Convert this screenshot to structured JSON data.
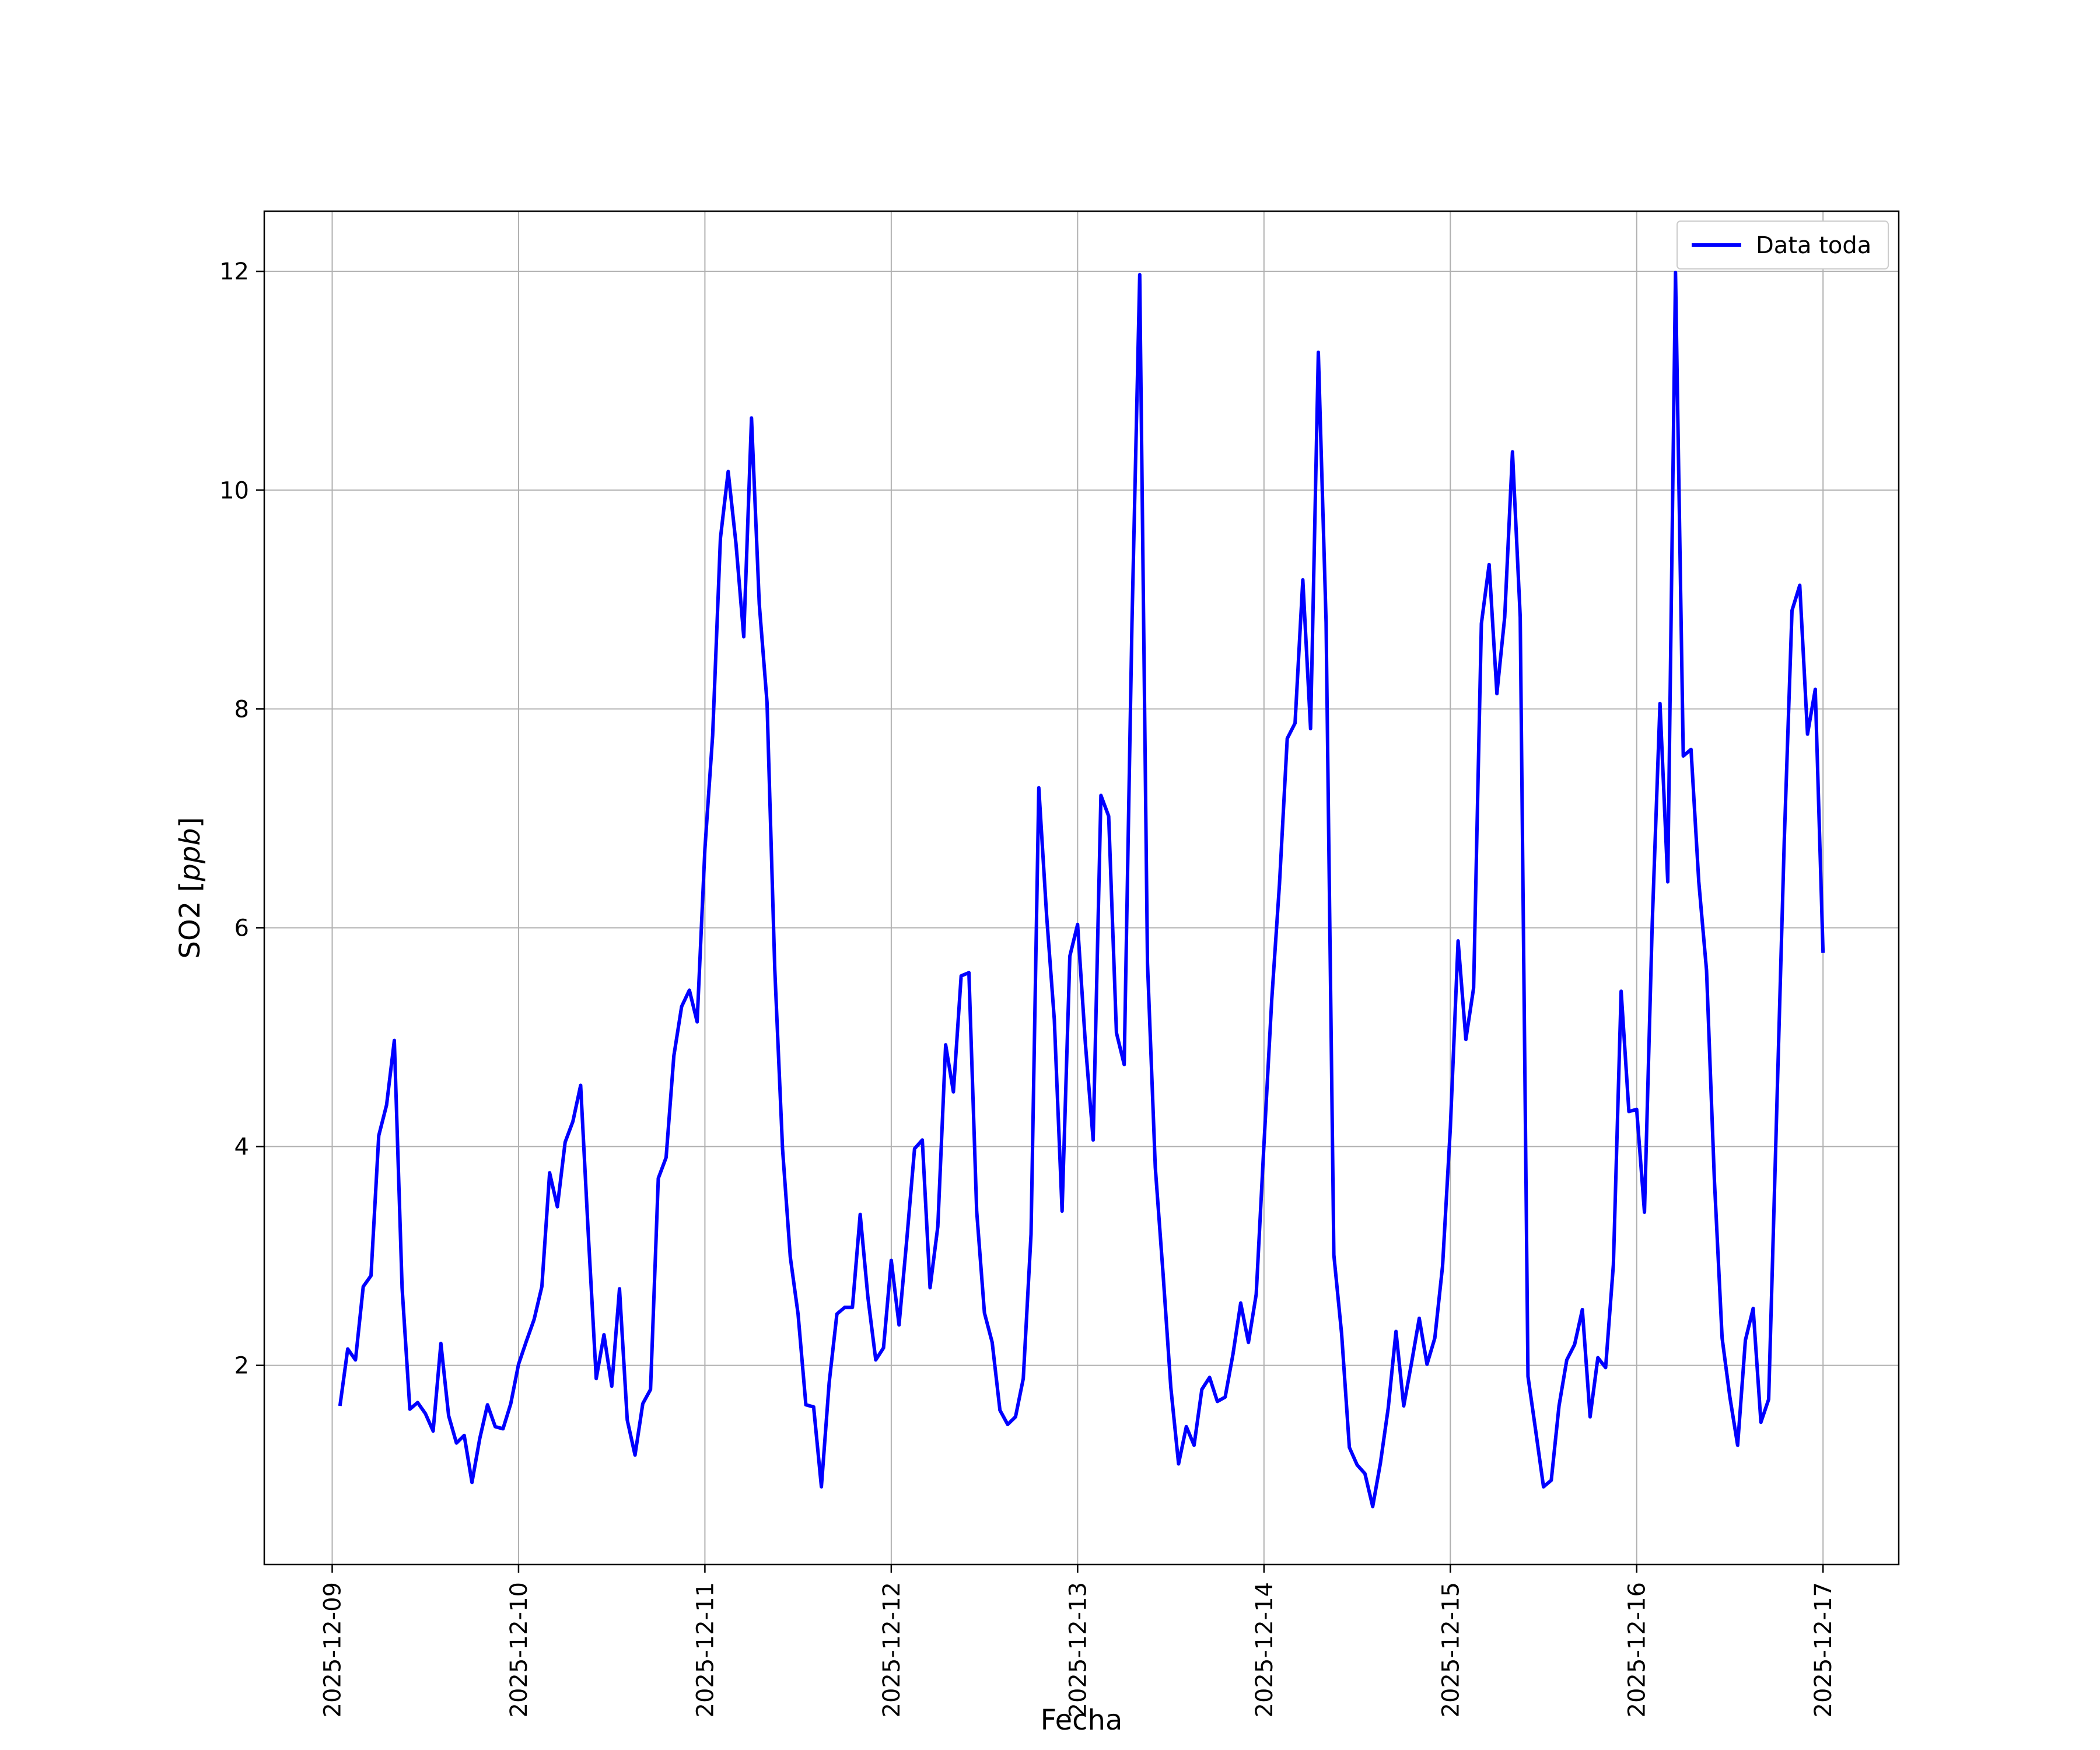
{
  "chart_data": {
    "type": "line",
    "title": "",
    "xlabel": "Fecha",
    "ylabel": "SO2 [ppb]",
    "ylabel_unit": "ppb",
    "ylabel_base": "SO2 ",
    "x_type": "datetime",
    "xlim": [
      "2025-12-08 15:15",
      "2025-12-17 09:45"
    ],
    "ylim": [
      0.18,
      12.55
    ],
    "x_ticks": [
      "2025-12-09",
      "2025-12-10",
      "2025-12-11",
      "2025-12-12",
      "2025-12-13",
      "2025-12-14",
      "2025-12-15",
      "2025-12-16",
      "2025-12-17"
    ],
    "y_ticks": [
      2,
      4,
      6,
      8,
      10,
      12
    ],
    "y_tick_labels": [
      "2",
      "4",
      "6",
      "8",
      "10",
      "12"
    ],
    "grid": true,
    "legend_placement": "top-right",
    "colors": {
      "line": "#0000ff",
      "grid": "#b0b0b0",
      "axes": "#000000"
    },
    "series": [
      {
        "name": "Data toda",
        "x": [
          "2025-12-09 01:00",
          "2025-12-09 02:00",
          "2025-12-09 03:00",
          "2025-12-09 04:00",
          "2025-12-09 05:00",
          "2025-12-09 06:00",
          "2025-12-09 07:00",
          "2025-12-09 08:00",
          "2025-12-09 09:00",
          "2025-12-09 10:00",
          "2025-12-09 11:00",
          "2025-12-09 12:00",
          "2025-12-09 13:00",
          "2025-12-09 14:00",
          "2025-12-09 15:00",
          "2025-12-09 16:00",
          "2025-12-09 17:00",
          "2025-12-09 18:00",
          "2025-12-09 19:00",
          "2025-12-09 20:00",
          "2025-12-09 21:00",
          "2025-12-09 22:00",
          "2025-12-09 23:00",
          "2025-12-10 00:00",
          "2025-12-10 01:00",
          "2025-12-10 02:00",
          "2025-12-10 03:00",
          "2025-12-10 04:00",
          "2025-12-10 05:00",
          "2025-12-10 06:00",
          "2025-12-10 07:00",
          "2025-12-10 08:00",
          "2025-12-10 09:00",
          "2025-12-10 10:00",
          "2025-12-10 11:00",
          "2025-12-10 12:00",
          "2025-12-10 13:00",
          "2025-12-10 14:00",
          "2025-12-10 15:00",
          "2025-12-10 16:00",
          "2025-12-10 17:00",
          "2025-12-10 18:00",
          "2025-12-10 19:00",
          "2025-12-10 20:00",
          "2025-12-10 21:00",
          "2025-12-10 22:00",
          "2025-12-10 23:00",
          "2025-12-11 00:00",
          "2025-12-11 01:00",
          "2025-12-11 02:00",
          "2025-12-11 03:00",
          "2025-12-11 04:00",
          "2025-12-11 05:00",
          "2025-12-11 06:00",
          "2025-12-11 07:00",
          "2025-12-11 08:00",
          "2025-12-11 09:00",
          "2025-12-11 10:00",
          "2025-12-11 11:00",
          "2025-12-11 12:00",
          "2025-12-11 13:00",
          "2025-12-11 14:00",
          "2025-12-11 15:00",
          "2025-12-11 16:00",
          "2025-12-11 17:00",
          "2025-12-11 18:00",
          "2025-12-11 19:00",
          "2025-12-11 20:00",
          "2025-12-11 21:00",
          "2025-12-11 22:00",
          "2025-12-11 23:00",
          "2025-12-12 00:00",
          "2025-12-12 01:00",
          "2025-12-12 02:00",
          "2025-12-12 03:00",
          "2025-12-12 04:00",
          "2025-12-12 05:00",
          "2025-12-12 06:00",
          "2025-12-12 07:00",
          "2025-12-12 08:00",
          "2025-12-12 09:00",
          "2025-12-12 10:00",
          "2025-12-12 11:00",
          "2025-12-12 12:00",
          "2025-12-12 13:00",
          "2025-12-12 14:00",
          "2025-12-12 15:00",
          "2025-12-12 16:00",
          "2025-12-12 17:00",
          "2025-12-12 18:00",
          "2025-12-12 19:00",
          "2025-12-12 20:00",
          "2025-12-12 21:00",
          "2025-12-12 22:00",
          "2025-12-12 23:00",
          "2025-12-13 00:00",
          "2025-12-13 01:00",
          "2025-12-13 02:00",
          "2025-12-13 03:00",
          "2025-12-13 04:00",
          "2025-12-13 05:00",
          "2025-12-13 06:00",
          "2025-12-13 07:00",
          "2025-12-13 08:00",
          "2025-12-13 09:00",
          "2025-12-13 10:00",
          "2025-12-13 11:00",
          "2025-12-13 12:00",
          "2025-12-13 13:00",
          "2025-12-13 14:00",
          "2025-12-13 15:00",
          "2025-12-13 16:00",
          "2025-12-13 17:00",
          "2025-12-13 18:00",
          "2025-12-13 19:00",
          "2025-12-13 20:00",
          "2025-12-13 21:00",
          "2025-12-13 22:00",
          "2025-12-13 23:00",
          "2025-12-14 00:00",
          "2025-12-14 01:00",
          "2025-12-14 02:00",
          "2025-12-14 03:00",
          "2025-12-14 04:00",
          "2025-12-14 05:00",
          "2025-12-14 06:00",
          "2025-12-14 07:00",
          "2025-12-14 08:00",
          "2025-12-14 09:00",
          "2025-12-14 10:00",
          "2025-12-14 11:00",
          "2025-12-14 12:00",
          "2025-12-14 13:00",
          "2025-12-14 14:00",
          "2025-12-14 15:00",
          "2025-12-14 16:00",
          "2025-12-14 17:00",
          "2025-12-14 18:00",
          "2025-12-14 19:00",
          "2025-12-14 20:00",
          "2025-12-14 21:00",
          "2025-12-14 22:00",
          "2025-12-14 23:00",
          "2025-12-15 00:00",
          "2025-12-15 01:00",
          "2025-12-15 02:00",
          "2025-12-15 03:00",
          "2025-12-15 04:00",
          "2025-12-15 05:00",
          "2025-12-15 06:00",
          "2025-12-15 07:00",
          "2025-12-15 08:00",
          "2025-12-15 09:00",
          "2025-12-15 10:00",
          "2025-12-15 11:00",
          "2025-12-15 12:00",
          "2025-12-15 13:00",
          "2025-12-15 14:00",
          "2025-12-15 15:00",
          "2025-12-15 16:00",
          "2025-12-15 17:00",
          "2025-12-15 18:00",
          "2025-12-15 19:00",
          "2025-12-15 20:00",
          "2025-12-15 21:00",
          "2025-12-15 22:00",
          "2025-12-15 23:00",
          "2025-12-16 00:00",
          "2025-12-16 01:00",
          "2025-12-16 02:00",
          "2025-12-16 03:00",
          "2025-12-16 04:00",
          "2025-12-16 05:00",
          "2025-12-16 06:00",
          "2025-12-16 07:00",
          "2025-12-16 08:00",
          "2025-12-16 09:00",
          "2025-12-16 10:00",
          "2025-12-16 11:00",
          "2025-12-16 12:00",
          "2025-12-16 13:00",
          "2025-12-16 14:00",
          "2025-12-16 15:00",
          "2025-12-16 16:00",
          "2025-12-16 17:00",
          "2025-12-16 18:00",
          "2025-12-16 19:00",
          "2025-12-16 20:00",
          "2025-12-16 21:00",
          "2025-12-16 22:00",
          "2025-12-16 23:00",
          "2025-12-17 00:00"
        ],
        "values": [
          1.63,
          2.15,
          2.05,
          2.72,
          2.82,
          4.1,
          4.38,
          4.97,
          2.71,
          1.6,
          1.66,
          1.56,
          1.4,
          2.2,
          1.54,
          1.29,
          1.36,
          0.93,
          1.33,
          1.64,
          1.44,
          1.42,
          1.65,
          2.01,
          2.22,
          2.42,
          2.72,
          3.76,
          3.45,
          4.04,
          4.23,
          4.56,
          3.18,
          1.88,
          2.28,
          1.81,
          2.7,
          1.5,
          1.18,
          1.65,
          1.78,
          3.71,
          3.9,
          4.83,
          5.28,
          5.43,
          5.14,
          6.72,
          7.76,
          9.56,
          10.17,
          9.51,
          8.66,
          10.66,
          8.96,
          8.06,
          5.62,
          3.98,
          2.99,
          2.47,
          1.64,
          1.62,
          0.89,
          1.84,
          2.47,
          2.53,
          2.53,
          3.38,
          2.62,
          2.05,
          2.16,
          2.96,
          2.37,
          3.15,
          3.98,
          4.06,
          2.71,
          3.27,
          4.93,
          4.5,
          5.56,
          5.59,
          3.41,
          2.48,
          2.21,
          1.59,
          1.46,
          1.53,
          1.88,
          3.2,
          7.28,
          6.12,
          5.16,
          3.41,
          5.74,
          6.03,
          4.94,
          4.06,
          7.21,
          7.02,
          5.04,
          4.75,
          8.78,
          11.97,
          5.68,
          3.81,
          2.84,
          1.8,
          1.1,
          1.44,
          1.27,
          1.78,
          1.89,
          1.67,
          1.71,
          2.1,
          2.57,
          2.21,
          2.65,
          4.02,
          5.34,
          6.4,
          7.73,
          7.87,
          9.18,
          7.82,
          11.26,
          8.79,
          3.01,
          2.29,
          1.25,
          1.09,
          1.01,
          0.71,
          1.11,
          1.61,
          2.31,
          1.63,
          2.02,
          2.43,
          2.01,
          2.25,
          2.91,
          4.17,
          5.88,
          4.98,
          5.45,
          8.78,
          9.32,
          8.14,
          8.84,
          10.35,
          8.84,
          1.9,
          1.4,
          0.89,
          0.95,
          1.63,
          2.05,
          2.19,
          2.51,
          1.53,
          2.07,
          1.98,
          2.92,
          5.42,
          4.32,
          4.34,
          3.4,
          6.04,
          8.05,
          6.42,
          11.99,
          7.57,
          7.63,
          6.42,
          5.61,
          3.7,
          2.25,
          1.71,
          1.27,
          2.23,
          2.52,
          1.48,
          1.69,
          4.23,
          6.79,
          8.9,
          9.13,
          7.77,
          8.18,
          5.77
        ]
      }
    ]
  }
}
